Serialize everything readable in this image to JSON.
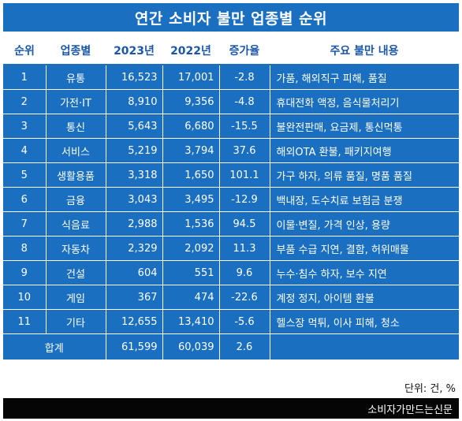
{
  "title": "연간 소비자 불만 업종별 순위",
  "headers": [
    "순위",
    "업종별",
    "2023년",
    "2022년",
    "증가율",
    "주요 불만 내용"
  ],
  "rows": [
    {
      "rank": "1",
      "sector": "유통",
      "y2023": "16,523",
      "y2022": "17,001",
      "rate": "-2.8",
      "content": "가품, 해외직구 피해, 품질"
    },
    {
      "rank": "2",
      "sector": "가전·IT",
      "y2023": "8,910",
      "y2022": "9,356",
      "rate": "-4.8",
      "content": "휴대전화 액정, 음식물처리기"
    },
    {
      "rank": "3",
      "sector": "통신",
      "y2023": "5,643",
      "y2022": "6,680",
      "rate": "-15.5",
      "content": "불완전판매, 요금제, 통신먹통"
    },
    {
      "rank": "4",
      "sector": "서비스",
      "y2023": "5,219",
      "y2022": "3,794",
      "rate": "37.6",
      "content": "해외OTA 환불, 패키지여행"
    },
    {
      "rank": "5",
      "sector": "생활용품",
      "y2023": "3,318",
      "y2022": "1,650",
      "rate": "101.1",
      "content": "가구 하자, 의류 품질, 명품 품질"
    },
    {
      "rank": "6",
      "sector": "금융",
      "y2023": "3,043",
      "y2022": "3,495",
      "rate": "-12.9",
      "content": "백내장, 도수치료 보험금 분쟁"
    },
    {
      "rank": "7",
      "sector": "식음료",
      "y2023": "2,988",
      "y2022": "1,536",
      "rate": "94.5",
      "content": "이물·변질, 가격 인상, 용량"
    },
    {
      "rank": "8",
      "sector": "자동차",
      "y2023": "2,329",
      "y2022": "2,092",
      "rate": "11.3",
      "content": "부품 수급 지연, 결함, 허위매물"
    },
    {
      "rank": "9",
      "sector": "건설",
      "y2023": "604",
      "y2022": "551",
      "rate": "9.6",
      "content": "누수·침수 하자, 보수 지연"
    },
    {
      "rank": "10",
      "sector": "게임",
      "y2023": "367",
      "y2022": "474",
      "rate": "-22.6",
      "content": "계정 정지, 아이템 환불"
    },
    {
      "rank": "11",
      "sector": "기타",
      "y2023": "12,655",
      "y2022": "13,410",
      "rate": "-5.6",
      "content": "헬스장 먹튀, 이사 피해, 청소"
    }
  ],
  "total": {
    "label": "합계",
    "y2023": "61,599",
    "y2022": "60,039",
    "rate": "2.6"
  },
  "unit_note": "단위: 건, %",
  "source": "소비자가만드는신문",
  "colors": {
    "accent": "#1b6fc0",
    "header_text": "#1b56a8",
    "footer": "#050505"
  }
}
